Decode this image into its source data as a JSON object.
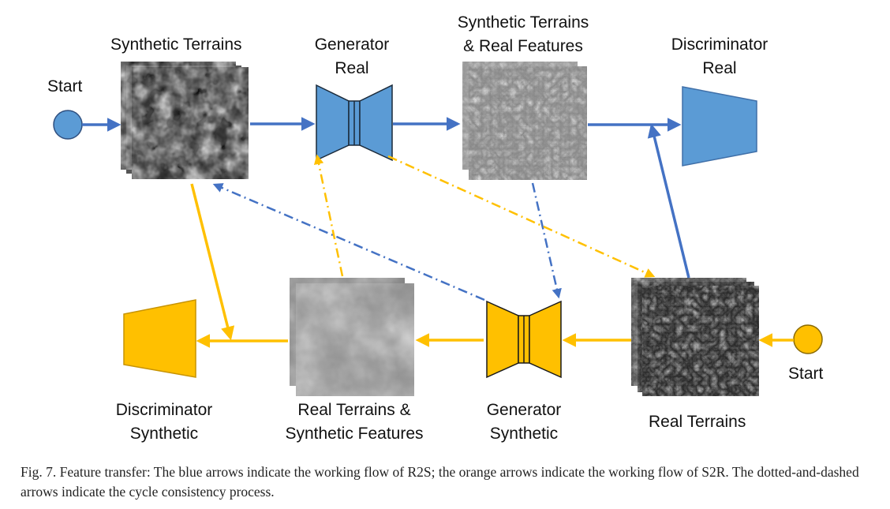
{
  "labels": {
    "start_top": "Start",
    "synthetic_terrains": "Synthetic Terrains",
    "generator_real_1": "Generator",
    "generator_real_2": "Real",
    "synth_real_feat_1": "Synthetic Terrains",
    "synth_real_feat_2": "& Real Features",
    "discriminator_real_1": "Discriminator",
    "discriminator_real_2": "Real",
    "discriminator_synth_1": "Discriminator",
    "discriminator_synth_2": "Synthetic",
    "real_synth_feat_1": "Real Terrains &",
    "real_synth_feat_2": "Synthetic Features",
    "generator_synth_1": "Generator",
    "generator_synth_2": "Synthetic",
    "real_terrains": "Real Terrains",
    "start_bottom": "Start"
  },
  "caption": "Fig. 7.  Feature transfer: The blue arrows indicate the working flow of R2S; the orange arrows indicate the working flow of S2R. The dotted-and-dashed arrows indicate the cycle consistency process.",
  "colors": {
    "blue": "#5b9bd5",
    "blue_stroke": "#3f6fa8",
    "orange": "#ffc000",
    "orange_stroke": "#c79300"
  }
}
